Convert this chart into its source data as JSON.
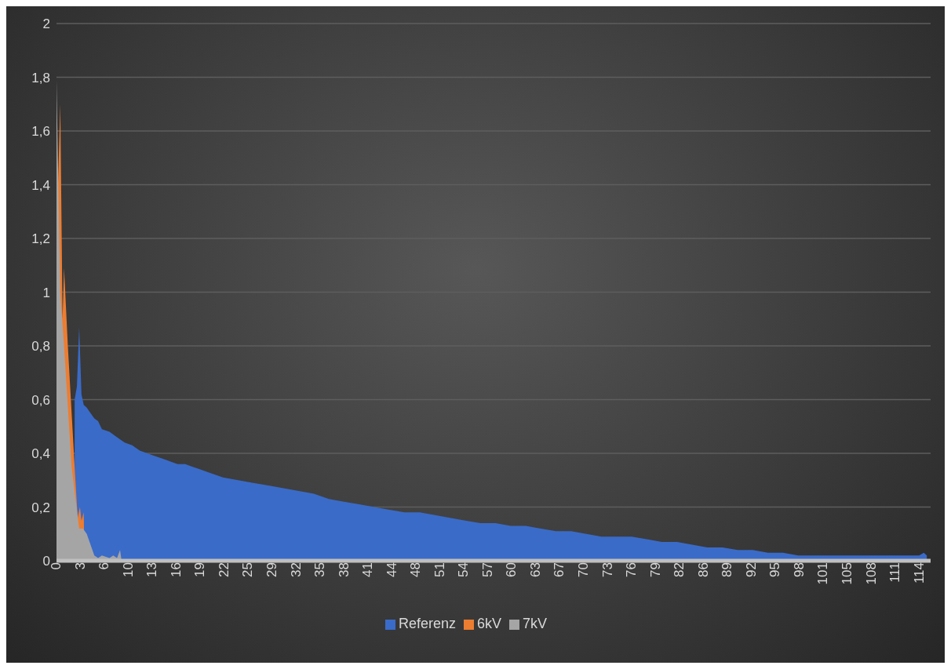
{
  "chart_data": {
    "type": "area",
    "xlim": [
      0,
      115.5
    ],
    "xticks": [
      0,
      {
        "value": 3.17,
        "label": "3"
      },
      {
        "value": 6.33,
        "label": "6"
      },
      {
        "value": 9.5,
        "label": "10"
      },
      {
        "value": 12.67,
        "label": "13"
      },
      {
        "value": 15.83,
        "label": "16"
      },
      19,
      {
        "value": 22.17,
        "label": "22"
      },
      {
        "value": 25.33,
        "label": "25"
      },
      {
        "value": 28.5,
        "label": "29"
      },
      {
        "value": 31.67,
        "label": "32"
      },
      {
        "value": 34.83,
        "label": "35"
      },
      38,
      {
        "value": 41.17,
        "label": "41"
      },
      {
        "value": 44.33,
        "label": "44"
      },
      {
        "value": 47.5,
        "label": "48"
      },
      {
        "value": 50.67,
        "label": "51"
      },
      {
        "value": 53.83,
        "label": "54"
      },
      57,
      {
        "value": 60.17,
        "label": "60"
      },
      {
        "value": 63.33,
        "label": "63"
      },
      {
        "value": 66.5,
        "label": "67"
      },
      {
        "value": 69.67,
        "label": "70"
      },
      {
        "value": 72.83,
        "label": "73"
      },
      76,
      {
        "value": 79.17,
        "label": "79"
      },
      {
        "value": 82.33,
        "label": "82"
      },
      {
        "value": 85.5,
        "label": "86"
      },
      {
        "value": 88.67,
        "label": "89"
      },
      {
        "value": 91.83,
        "label": "92"
      },
      95,
      {
        "value": 98.17,
        "label": "98"
      },
      {
        "value": 101.33,
        "label": "101"
      },
      {
        "value": 104.5,
        "label": "105"
      },
      {
        "value": 107.67,
        "label": "108"
      },
      {
        "value": 110.83,
        "label": "111"
      },
      114
    ],
    "ylim": [
      0,
      2
    ],
    "yticks": [
      0,
      {
        "value": 0.2,
        "label": "0,2"
      },
      {
        "value": 0.4,
        "label": "0,4"
      },
      {
        "value": 0.6,
        "label": "0,6"
      },
      {
        "value": 0.8,
        "label": "0,8"
      },
      1,
      {
        "value": 1.2,
        "label": "1,2"
      },
      {
        "value": 1.4,
        "label": "1,4"
      },
      {
        "value": 1.6,
        "label": "1,6"
      },
      {
        "value": 1.8,
        "label": "1,8"
      },
      2
    ],
    "grid": "y",
    "legend": "bottom",
    "series": [
      {
        "name": "Referenz",
        "color": "#3a6bc8",
        "x": [
          2.4,
          2.7,
          3.0,
          3.3,
          3.6,
          4,
          4.5,
          5,
          5.5,
          6,
          7,
          8,
          9,
          10,
          11,
          12,
          13,
          14,
          15,
          16,
          17,
          18,
          19,
          20,
          22,
          24,
          26,
          28,
          30,
          32,
          34,
          36,
          38,
          40,
          42,
          44,
          46,
          48,
          50,
          52,
          54,
          56,
          58,
          60,
          62,
          64,
          66,
          68,
          70,
          72,
          74,
          76,
          78,
          80,
          82,
          84,
          86,
          88,
          90,
          92,
          94,
          96,
          98,
          100,
          102,
          104,
          106,
          108,
          110,
          112,
          114,
          114.6,
          115
        ],
        "values": [
          0.6,
          0.65,
          0.87,
          0.62,
          0.58,
          0.57,
          0.55,
          0.53,
          0.52,
          0.49,
          0.48,
          0.46,
          0.44,
          0.43,
          0.41,
          0.4,
          0.39,
          0.38,
          0.37,
          0.36,
          0.36,
          0.35,
          0.34,
          0.33,
          0.31,
          0.3,
          0.29,
          0.28,
          0.27,
          0.26,
          0.25,
          0.23,
          0.22,
          0.21,
          0.2,
          0.19,
          0.18,
          0.18,
          0.17,
          0.16,
          0.15,
          0.14,
          0.14,
          0.13,
          0.13,
          0.12,
          0.11,
          0.11,
          0.1,
          0.09,
          0.09,
          0.09,
          0.08,
          0.07,
          0.07,
          0.06,
          0.05,
          0.05,
          0.04,
          0.04,
          0.03,
          0.03,
          0.02,
          0.02,
          0.02,
          0.02,
          0.02,
          0.02,
          0.02,
          0.02,
          0.02,
          0.03,
          0.02
        ]
      },
      {
        "name": "6kV",
        "color": "#ed7d31",
        "x": [
          0,
          0.5,
          0.8,
          1.0,
          1.5,
          2,
          2.5,
          2.8,
          3.1,
          3.3,
          3.6,
          3.7
        ],
        "values": [
          1.2,
          1.7,
          0.9,
          1.09,
          0.8,
          0.55,
          0.3,
          0.16,
          0.2,
          0.15,
          0.18,
          0
        ]
      },
      {
        "name": "7kV",
        "color": "#a5a5a5",
        "x": [
          0,
          0.5,
          1,
          2,
          3,
          3.5,
          4,
          4.5,
          5,
          5.5,
          6,
          7,
          7.5,
          8,
          8.4,
          8.6
        ],
        "values": [
          1.79,
          1.0,
          0.8,
          0.35,
          0.12,
          0.12,
          0.1,
          0.06,
          0.02,
          0.01,
          0.02,
          0.01,
          0.02,
          0.01,
          0.04,
          0
        ]
      }
    ]
  }
}
